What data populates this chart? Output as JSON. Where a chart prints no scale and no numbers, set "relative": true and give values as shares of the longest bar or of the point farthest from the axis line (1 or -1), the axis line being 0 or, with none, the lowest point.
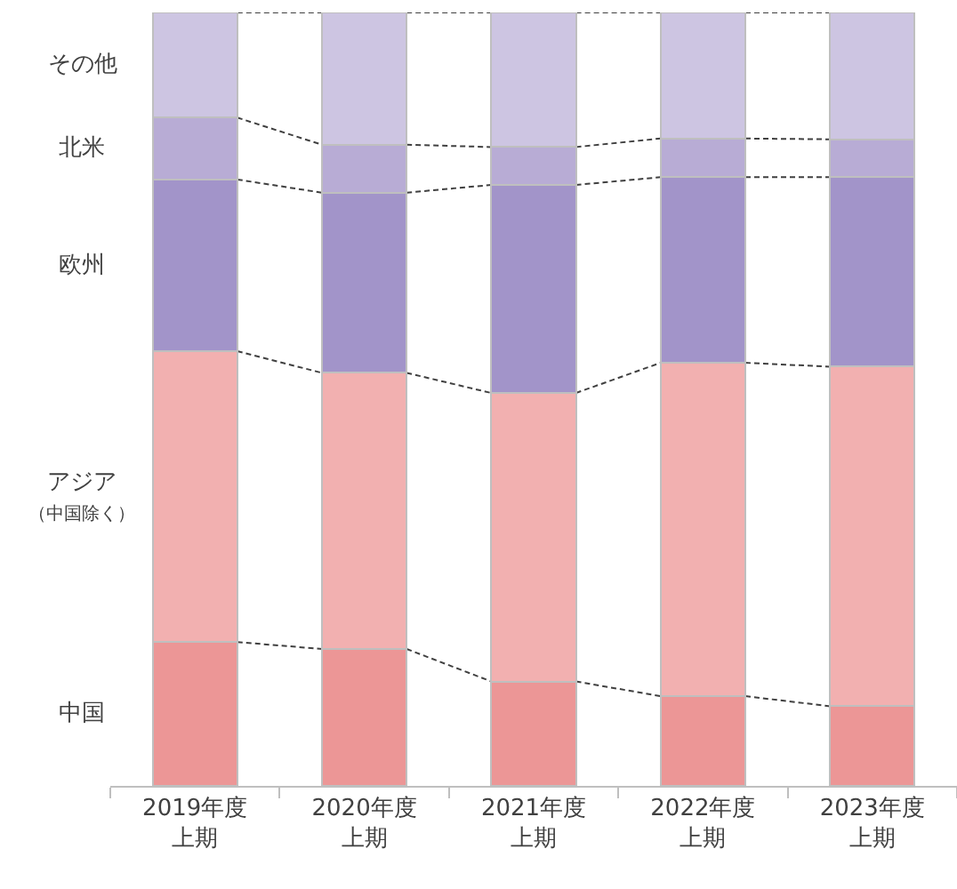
{
  "chart_data": {
    "type": "bar",
    "stacked": true,
    "relative": true,
    "legend": false,
    "line_style": "dashed",
    "categories": [
      "2019年度上期",
      "2020年度上期",
      "2021年度上期",
      "2022年度上期",
      "2023年度上期"
    ],
    "series": [
      {
        "name": "中国",
        "color": "#ec9696",
        "values": [
          0.186,
          0.177,
          0.135,
          0.116,
          0.103
        ]
      },
      {
        "name": "アジア（中国除く）",
        "color": "#f2b0b0",
        "values": [
          0.376,
          0.357,
          0.373,
          0.431,
          0.439
        ]
      },
      {
        "name": "欧州",
        "color": "#a294c9",
        "values": [
          0.222,
          0.233,
          0.269,
          0.24,
          0.245
        ]
      },
      {
        "name": "北米",
        "color": "#b8acd5",
        "values": [
          0.08,
          0.062,
          0.049,
          0.05,
          0.049
        ]
      },
      {
        "name": "その他",
        "color": "#cdc5e2",
        "values": [
          0.136,
          0.171,
          0.174,
          0.163,
          0.164
        ]
      }
    ]
  }
}
